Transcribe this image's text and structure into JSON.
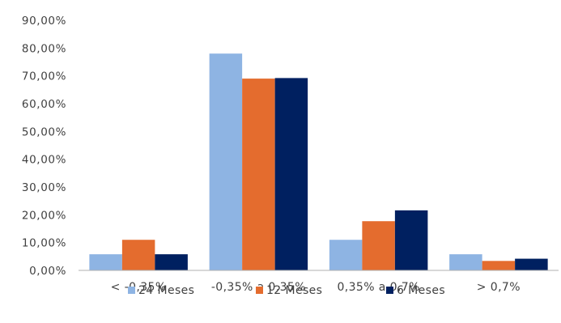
{
  "chart_data": {
    "type": "bar",
    "title": "",
    "xlabel": "",
    "ylabel": "",
    "categories": [
      "< -0,35%",
      "-0,35% a 0,35%",
      "0,35% a 0,7%",
      "> 0,7%"
    ],
    "series": [
      {
        "name": "24 Meses",
        "color": "#8EB4E3",
        "values": [
          5.8,
          78.0,
          11.0,
          5.8
        ]
      },
      {
        "name": "12 Meses",
        "color": "#E46C2E",
        "values": [
          11.0,
          69.0,
          17.7,
          3.4
        ]
      },
      {
        "name": "6 Meses",
        "color": "#002060",
        "values": [
          5.8,
          69.2,
          21.6,
          4.2
        ]
      }
    ],
    "ylim": [
      0,
      90
    ],
    "yticks": [
      "0,00%",
      "10,00%",
      "20,00%",
      "30,00%",
      "40,00%",
      "50,00%",
      "60,00%",
      "70,00%",
      "80,00%",
      "90,00%"
    ],
    "grid": false,
    "legend_position": "bottom"
  }
}
